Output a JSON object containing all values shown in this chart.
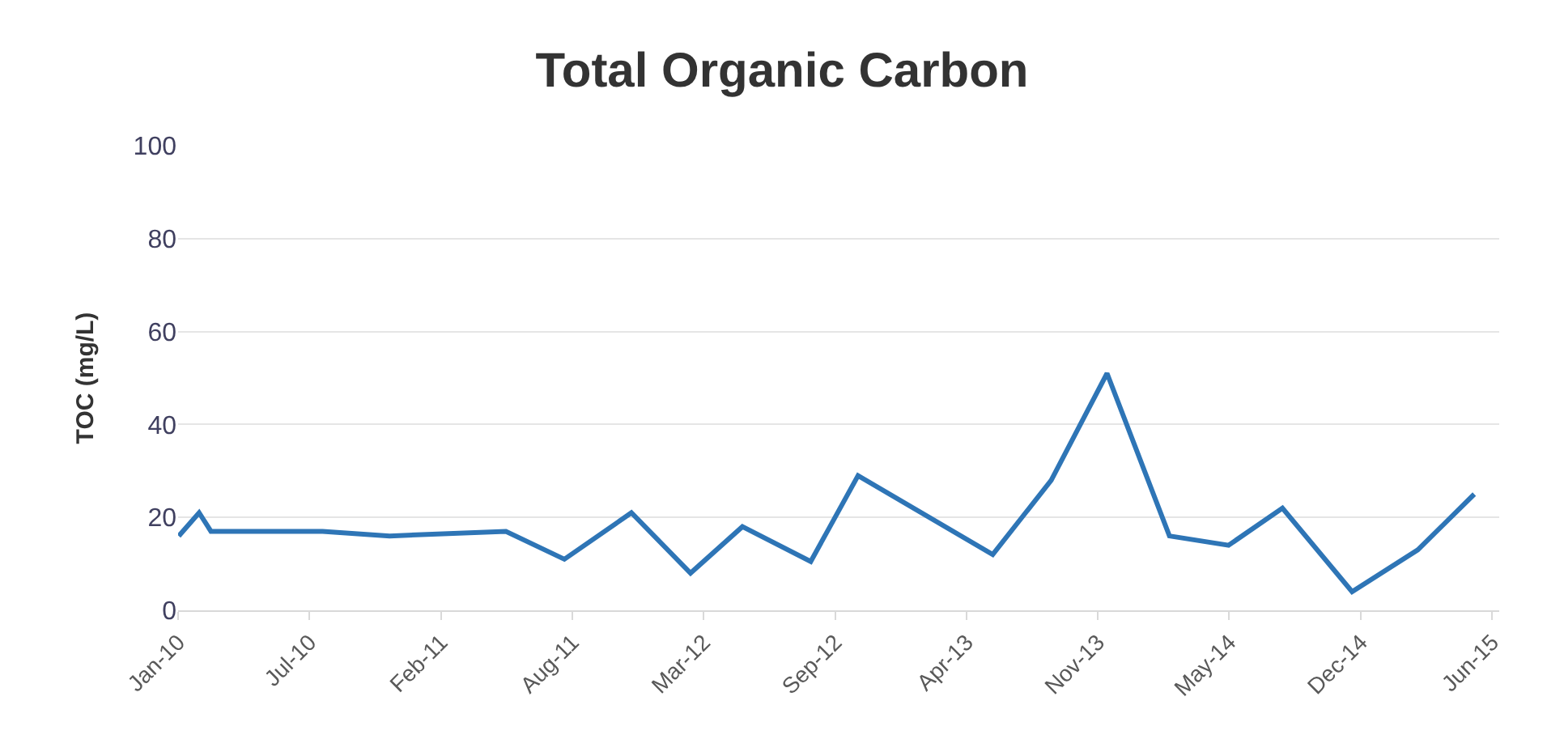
{
  "chart_data": {
    "type": "line",
    "title": "Total Organic Carbon",
    "ylabel": "TOC (mg/L)",
    "x": [
      "2010-01-02",
      "2010-02-02",
      "2010-02-20",
      "2010-08-09",
      "2010-11-19",
      "2011-05-15",
      "2011-08-12",
      "2011-11-22",
      "2012-02-20",
      "2012-05-09",
      "2012-08-21",
      "2012-11-01",
      "2013-05-25",
      "2013-08-22",
      "2013-11-15",
      "2014-02-18",
      "2014-05-19",
      "2014-08-09",
      "2014-11-23",
      "2015-03-03",
      "2015-05-28"
    ],
    "series": [
      {
        "color": "#2e75b6",
        "values": [
          16,
          21,
          17,
          17,
          16,
          17,
          11,
          21,
          8,
          18,
          10.5,
          29,
          12,
          28,
          51,
          16,
          14,
          22,
          4,
          13,
          25
        ]
      }
    ],
    "xlim": [
      "2010-01-01",
      "2015-07-05"
    ],
    "xticks": [
      {
        "value": "2010-01-01",
        "label": "Jan-10"
      },
      {
        "value": "2010-07-20",
        "label": "Jul-10"
      },
      {
        "value": "2011-02-05",
        "label": "Feb-11"
      },
      {
        "value": "2011-08-24",
        "label": "Aug-11"
      },
      {
        "value": "2012-03-11",
        "label": "Mar-12"
      },
      {
        "value": "2012-09-27",
        "label": "Sep-12"
      },
      {
        "value": "2013-04-15",
        "label": "Apr-13"
      },
      {
        "value": "2013-11-01",
        "label": "Nov-13"
      },
      {
        "value": "2014-05-20",
        "label": "May-14"
      },
      {
        "value": "2014-12-06",
        "label": "Dec-14"
      },
      {
        "value": "2015-06-24",
        "label": "Jun-15"
      }
    ],
    "ylim": [
      0,
      100
    ],
    "yticks": [
      0,
      20,
      40,
      60,
      80,
      100
    ],
    "grid": "y",
    "legend": false,
    "marker": "none",
    "line_style": "solid"
  }
}
